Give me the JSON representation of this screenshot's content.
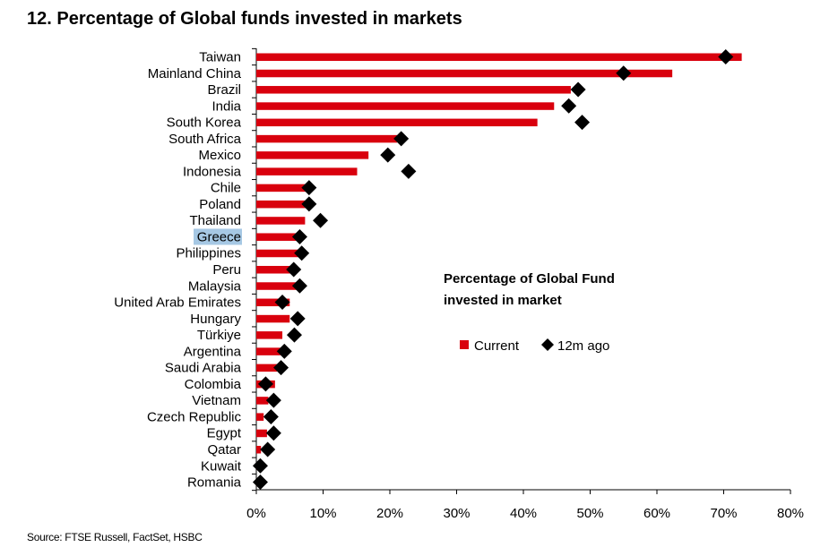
{
  "chart_data": {
    "type": "bar",
    "orientation": "horizontal",
    "title": "12. Percentage of Global funds invested in markets",
    "source": "Source: FTSE Russell, FactSet, HSBC",
    "legend_title": "Percentage of Global Fund invested in market",
    "legend_title_lines": [
      "Percentage of Global Fund",
      "invested in market"
    ],
    "legend_placement": "center-right",
    "xlim": [
      0,
      80
    ],
    "xticks": [
      "0%",
      "10%",
      "20%",
      "30%",
      "40%",
      "50%",
      "60%",
      "70%",
      "80%"
    ],
    "grid": false,
    "categories": [
      "Taiwan",
      "Mainland China",
      "Brazil",
      "India",
      "South Korea",
      "South Africa",
      "Mexico",
      "Indonesia",
      "Chile",
      "Poland",
      "Thailand",
      "Greece",
      "Philippines",
      "Peru",
      "Malaysia",
      "United Arab Emirates",
      "Hungary",
      "Türkiye",
      "Argentina",
      "Saudi Arabia",
      "Colombia",
      "Vietnam",
      "Czech Republic",
      "Egypt",
      "Qatar",
      "Kuwait",
      "Romania"
    ],
    "highlighted_category": "Greece",
    "series": [
      {
        "name": "Current",
        "type": "bar",
        "color": "#d9000d",
        "values": [
          72.7,
          62.3,
          47.1,
          44.6,
          42.1,
          21.1,
          16.8,
          15.1,
          7.4,
          7.6,
          7.3,
          6.0,
          6.25,
          5.4,
          6.25,
          5.0,
          5.0,
          3.9,
          3.6,
          3.1,
          2.8,
          1.8,
          1.1,
          1.6,
          0.7,
          0.1,
          0.1
        ]
      },
      {
        "name": "12m ago",
        "type": "marker",
        "marker": "diamond",
        "color": "#000000",
        "values": [
          70.3,
          55.0,
          48.2,
          46.8,
          48.8,
          21.7,
          19.7,
          22.8,
          7.9,
          7.9,
          9.6,
          6.5,
          6.8,
          5.6,
          6.5,
          3.9,
          6.2,
          5.7,
          4.2,
          3.7,
          1.4,
          2.6,
          2.2,
          2.6,
          1.7,
          0.6,
          0.6
        ]
      }
    ]
  }
}
